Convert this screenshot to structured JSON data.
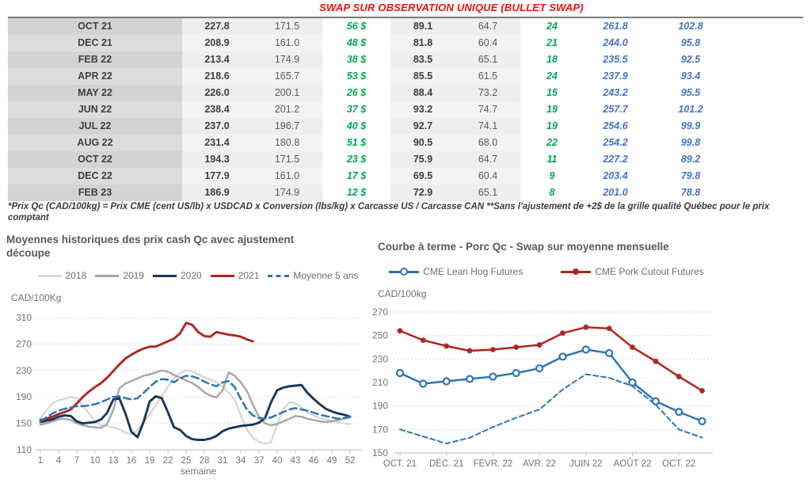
{
  "page": {
    "title": "SWAP SUR OBSERVATION UNIQUE (BULLET SWAP)",
    "footnote": "*Prix Qc (CAD/100kg) = Prix CME (cent US/lb) x USDCAD x Conversion (lbs/kg) x Carcasse US / Carcasse CAN **Sans l'ajustement de +2$ de la grille qualité Québec pour le prix comptant"
  },
  "colors": {
    "title_red": "#f20d0d",
    "green_text": "#00a84f",
    "blue_text": "#4472c4",
    "series_red": "#ae2721",
    "series_navy": "#17375d",
    "series_blue": "#2e75b6",
    "series_gray": "#a6a6a6",
    "series_lightgray": "#d8d8d8"
  },
  "table": {
    "rows": [
      {
        "month": "OCT 21",
        "values": [
          "227.8",
          "171.5",
          "56 $",
          "89.1",
          "64.7",
          "24",
          "261.8",
          "102.8"
        ]
      },
      {
        "month": "DEC 21",
        "values": [
          "208.9",
          "161.0",
          "48 $",
          "81.8",
          "60.4",
          "21",
          "244.0",
          "95.8"
        ]
      },
      {
        "month": "FEB 22",
        "values": [
          "213.4",
          "174.9",
          "38 $",
          "83.5",
          "65.1",
          "18",
          "235.5",
          "92.5"
        ]
      },
      {
        "month": "APR 22",
        "values": [
          "218.6",
          "165.7",
          "53 $",
          "85.5",
          "61.5",
          "24",
          "237.9",
          "93.4"
        ]
      },
      {
        "month": "MAY 22",
        "values": [
          "226.0",
          "200.1",
          "26 $",
          "88.4",
          "73.2",
          "15",
          "243.2",
          "95.5"
        ]
      },
      {
        "month": "JUN 22",
        "values": [
          "238.4",
          "201.2",
          "37 $",
          "93.2",
          "74.7",
          "19",
          "257.7",
          "101.2"
        ]
      },
      {
        "month": "JUL 22",
        "values": [
          "237.0",
          "196.7",
          "40 $",
          "92.7",
          "74.1",
          "19",
          "254.6",
          "99.9"
        ]
      },
      {
        "month": "AUG 22",
        "values": [
          "231.4",
          "180.8",
          "51 $",
          "90.5",
          "68.0",
          "22",
          "254.2",
          "99.8"
        ]
      },
      {
        "month": "OCT 22",
        "values": [
          "194.3",
          "171.5",
          "23 $",
          "75.9",
          "64.7",
          "11",
          "227.2",
          "89.2"
        ]
      },
      {
        "month": "DEC 22",
        "values": [
          "177.9",
          "161.0",
          "17 $",
          "69.5",
          "60.4",
          "9",
          "203.4",
          "79.8"
        ]
      },
      {
        "month": "FEB 23",
        "values": [
          "186.9",
          "174.9",
          "12 $",
          "72.9",
          "65.1",
          "8",
          "201.0",
          "78.8"
        ]
      }
    ]
  },
  "chart_data": [
    {
      "type": "line",
      "title": "Moyennes historiques des prix cash Qc avec ajustement découpe",
      "ylabel": "CAD/100Kg",
      "xlabel": "semaine",
      "ylim": [
        110,
        310
      ],
      "yticks": [
        110,
        150,
        190,
        230,
        270,
        310
      ],
      "xticks": [
        1,
        4,
        7,
        10,
        13,
        16,
        19,
        22,
        25,
        28,
        31,
        34,
        37,
        40,
        43,
        46,
        49,
        52
      ],
      "x_range": [
        1,
        52
      ],
      "grid": true,
      "legend_position": "top",
      "series": [
        {
          "name": "2018",
          "color": "#d8d8d8",
          "style": "solid",
          "width": 2.4,
          "values": [
            158,
            170,
            180,
            185,
            187,
            190,
            188,
            176,
            165,
            152,
            147,
            146,
            144,
            141,
            136,
            133,
            140,
            152,
            163,
            178,
            192,
            205,
            218,
            226,
            230,
            229,
            224,
            220,
            216,
            212,
            206,
            196,
            186,
            162,
            141,
            128,
            122,
            119,
            122,
            148,
            172,
            182,
            180,
            174,
            167,
            162,
            158,
            156,
            154,
            152,
            150,
            149
          ]
        },
        {
          "name": "2019",
          "color": "#a6a6a6",
          "style": "solid",
          "width": 2.4,
          "values": [
            148,
            150,
            153,
            156,
            157,
            155,
            150,
            147,
            145,
            144,
            143,
            149,
            170,
            203,
            210,
            214,
            218,
            222,
            224,
            227,
            230,
            228,
            223,
            219,
            215,
            211,
            205,
            197,
            192,
            189,
            200,
            227,
            222,
            212,
            199,
            178,
            160,
            150,
            147,
            149,
            153,
            157,
            161,
            160,
            157,
            155,
            153,
            152,
            153,
            155,
            157,
            159
          ]
        },
        {
          "name": "2020",
          "color": "#17375d",
          "style": "solid",
          "width": 2.9,
          "values": [
            152,
            154,
            156,
            160,
            162,
            161,
            153,
            150,
            151,
            152,
            156,
            166,
            186,
            188,
            165,
            137,
            129,
            152,
            183,
            191,
            188,
            167,
            144,
            140,
            131,
            126,
            125,
            125,
            127,
            131,
            138,
            142,
            144,
            146,
            147,
            148,
            151,
            158,
            182,
            200,
            204,
            206,
            207,
            208,
            196,
            187,
            179,
            172,
            168,
            165,
            163,
            160
          ]
        },
        {
          "name": "2021",
          "color": "#ae2721",
          "style": "solid",
          "width": 2.9,
          "values": [
            155,
            157,
            160,
            164,
            167,
            171,
            180,
            190,
            198,
            205,
            211,
            219,
            229,
            239,
            248,
            254,
            259,
            263,
            266,
            266,
            270,
            274,
            278,
            286,
            302,
            299,
            288,
            282,
            281,
            288,
            286,
            284,
            283,
            281,
            277,
            274,
            null,
            null,
            null,
            null,
            null,
            null,
            null,
            null,
            null,
            null,
            null,
            null,
            null,
            null,
            null,
            null
          ]
        },
        {
          "name": "Moyenne 5 ans",
          "color": "#2e75b6",
          "style": "dashed",
          "width": 2.5,
          "values": [
            153,
            159,
            165,
            169,
            172,
            174,
            176,
            176,
            177,
            179,
            182,
            186,
            190,
            191,
            188,
            186,
            188,
            196,
            205,
            213,
            217,
            216,
            212,
            218,
            222,
            221,
            218,
            213,
            209,
            206,
            212,
            214,
            205,
            187,
            171,
            162,
            158,
            157,
            159,
            163,
            167,
            171,
            173,
            171,
            169,
            166,
            163,
            161,
            159,
            157,
            158,
            160
          ]
        }
      ]
    },
    {
      "type": "line",
      "title": "Courbe à terme - Porc Qc - Swap sur moyenne mensuelle",
      "ylabel": "CAD/100kg",
      "xlabel": "",
      "ylim": [
        150,
        270
      ],
      "yticks": [
        150,
        170,
        190,
        210,
        230,
        250,
        270
      ],
      "x_labels": [
        "OCT. 21",
        "DÉC. 21",
        "FÉVR. 22",
        "AVR. 22",
        "JUIN 22",
        "AOÛT 22",
        "OCT. 22"
      ],
      "n_points": 14,
      "grid": true,
      "legend_position": "top",
      "series": [
        {
          "name": "",
          "color": "#2e75b6",
          "style": "dashed",
          "width": 2,
          "marker": "none",
          "in_legend": false,
          "values": [
            170,
            164,
            158,
            163,
            172,
            180,
            187,
            204,
            217,
            214,
            207,
            191,
            170,
            163
          ]
        },
        {
          "name": "CME Lean Hog Futures",
          "color": "#2e75b6",
          "style": "solid",
          "width": 2.5,
          "marker": "open-circle",
          "values": [
            218,
            209,
            211,
            213,
            215,
            218,
            222,
            232,
            238,
            235,
            210,
            194,
            185,
            177
          ]
        },
        {
          "name": "CME Pork Cutout Futures",
          "color": "#ae2721",
          "style": "solid",
          "width": 2.5,
          "marker": "filled-circle",
          "values": [
            254,
            246,
            241,
            237,
            238,
            240,
            242,
            252,
            257,
            256,
            240,
            228,
            215,
            203
          ]
        }
      ]
    }
  ]
}
